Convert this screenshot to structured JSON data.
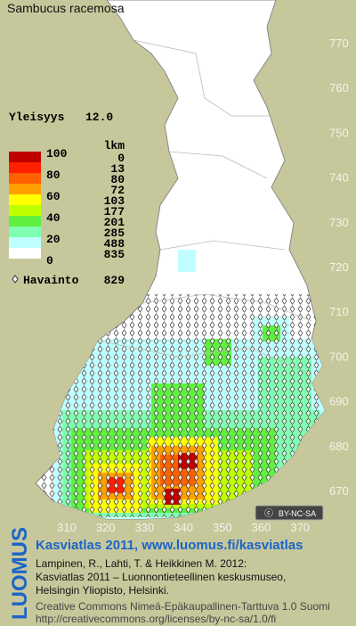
{
  "title": "Sambucus racemosa",
  "index": {
    "label": "Yleisyys",
    "value": "12.0"
  },
  "legend": {
    "count_header": "lkm",
    "scale_labels": [
      100,
      80,
      60,
      40,
      20,
      0
    ],
    "classes": [
      {
        "color": "#c00000",
        "count": 0
      },
      {
        "color": "#ff2000",
        "count": 13
      },
      {
        "color": "#ff6000",
        "count": 80
      },
      {
        "color": "#ffa000",
        "count": 72
      },
      {
        "color": "#ffff00",
        "count": 103
      },
      {
        "color": "#c0ff00",
        "count": 177
      },
      {
        "color": "#60f040",
        "count": 201
      },
      {
        "color": "#80ffb0",
        "count": 285
      },
      {
        "color": "#c0ffff",
        "count": 488
      },
      {
        "color": "#ffffff",
        "count": 835
      }
    ]
  },
  "observations": {
    "label": "Havainto",
    "count": 829
  },
  "x_ticks": [
    310,
    320,
    330,
    340,
    350,
    360,
    370
  ],
  "y_ticks": [
    770,
    760,
    750,
    740,
    730,
    720,
    710,
    700,
    690,
    680,
    670
  ],
  "license_badge": "BY-NC-SA",
  "logo": "LUOMUS",
  "credits": {
    "heading": "Kasviatlas 2011, www.luomus.fi/kasviatlas",
    "citation": [
      "Lampinen, R., Lahti, T. & Heikkinen M. 2012:",
      "Kasviatlas 2011 – Luonnontieteellinen keskusmuseo,",
      "Helsingin Yliopisto, Helsinki."
    ],
    "license": [
      "Creative Commons Nimeä-Epäkaupallinen-Tarttuva 1.0 Suomi",
      "http://creativecommons.org/licenses/by-nc-sa/1.0/fi"
    ]
  }
}
